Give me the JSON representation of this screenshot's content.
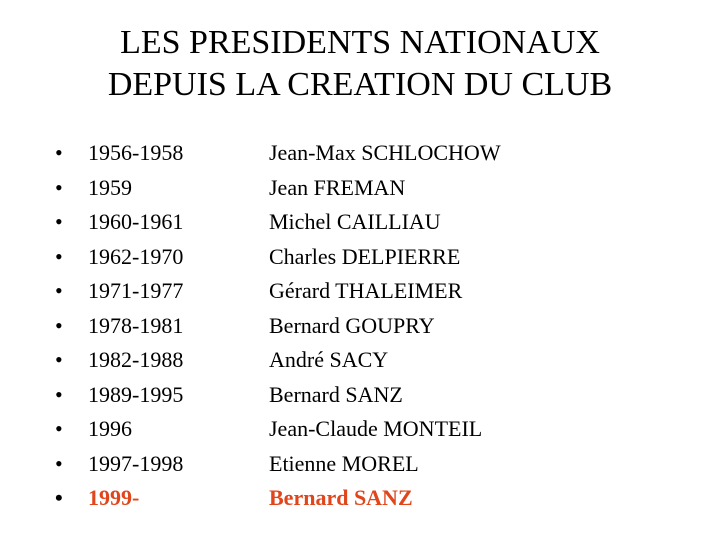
{
  "slide": {
    "title_line1": "LES PRESIDENTS NATIONAUX",
    "title_line2": "DEPUIS LA CREATION DU CLUB",
    "bullet_symbol": "•",
    "highlight_color": "#e0451b",
    "presidents": [
      {
        "years": "1956-1958",
        "name": "Jean-Max SCHLOCHOW"
      },
      {
        "years": "1959",
        "name": "Jean FREMAN"
      },
      {
        "years": "1960-1961",
        "name": "Michel CAILLIAU"
      },
      {
        "years": "1962-1970",
        "name": "Charles DELPIERRE"
      },
      {
        "years": "1971-1977",
        "name": "Gérard THALEIMER"
      },
      {
        "years": "1978-1981",
        "name": "Bernard GOUPRY"
      },
      {
        "years": "1982-1988",
        "name": "André SACY"
      },
      {
        "years": "1989-1995",
        "name": "Bernard SANZ"
      },
      {
        "years": "1996",
        "name": "Jean-Claude MONTEIL"
      },
      {
        "years": "1997-1998",
        "name": "Etienne MOREL"
      },
      {
        "years": "1999-",
        "name": "Bernard SANZ"
      }
    ]
  }
}
